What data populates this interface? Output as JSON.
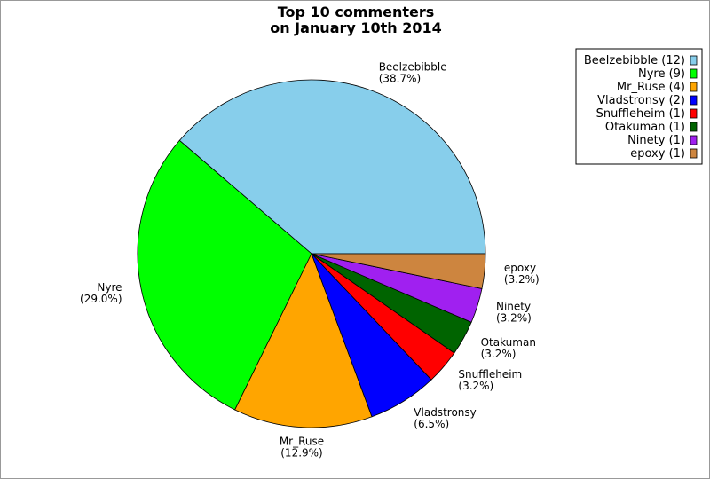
{
  "chart_data": {
    "type": "pie",
    "title": [
      "Top 10 commenters",
      "on January 10th 2014"
    ],
    "start_angle_deg": 0,
    "direction": "counterclockwise",
    "slices": [
      {
        "name": "Beelzebibble",
        "value": 12,
        "percent_label": "(38.7%)",
        "legend": "Beelzebibble (12)",
        "color": "#87CEEB"
      },
      {
        "name": "Nyre",
        "value": 9,
        "percent_label": "(29.0%)",
        "legend": "Nyre (9)",
        "color": "#00FF00"
      },
      {
        "name": "Mr_Ruse",
        "value": 4,
        "percent_label": "(12.9%)",
        "legend": "Mr_Ruse (4)",
        "color": "#FFA500"
      },
      {
        "name": "Vladstronsy",
        "value": 2,
        "percent_label": "(6.5%)",
        "legend": "Vladstronsy (2)",
        "color": "#0000FF"
      },
      {
        "name": "Snuffleheim",
        "value": 1,
        "percent_label": "(3.2%)",
        "legend": "Snuffleheim (1)",
        "color": "#FF0000"
      },
      {
        "name": "Otakuman",
        "value": 1,
        "percent_label": "(3.2%)",
        "legend": "Otakuman (1)",
        "color": "#006400"
      },
      {
        "name": "Ninety",
        "value": 1,
        "percent_label": "(3.2%)",
        "legend": "Ninety (1)",
        "color": "#A020F0"
      },
      {
        "name": "epoxy",
        "value": 1,
        "percent_label": "(3.2%)",
        "legend": "epoxy (1)",
        "color": "#CD853F"
      }
    ],
    "legend_position": "top-right"
  }
}
